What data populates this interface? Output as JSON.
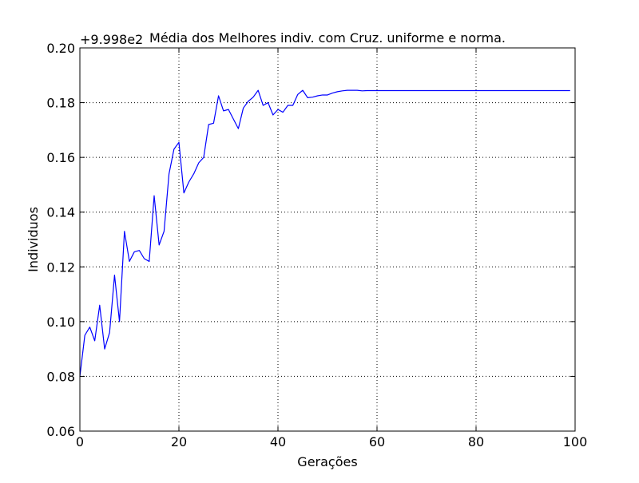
{
  "chart_data": {
    "type": "line",
    "title": "Média dos Melhores indiv. com Cruz. uniforme e norma.",
    "xlabel": "Gerações",
    "ylabel": "Individuos",
    "y_offset_label": "+9.998e2",
    "xlim": [
      0,
      100
    ],
    "ylim": [
      0.06,
      0.2
    ],
    "xticks": [
      0,
      20,
      40,
      60,
      80,
      100
    ],
    "yticks": [
      0.06,
      0.08,
      0.1,
      0.12,
      0.14,
      0.16,
      0.18,
      0.2
    ],
    "xtick_labels": [
      "0",
      "20",
      "40",
      "60",
      "80",
      "100"
    ],
    "ytick_labels": [
      "0.06",
      "0.08",
      "0.10",
      "0.12",
      "0.14",
      "0.16",
      "0.18",
      "0.20"
    ],
    "grid": true,
    "colors": {
      "series": "#0000ff",
      "grid": "#000000",
      "frame": "#000000"
    },
    "series": [
      {
        "x": [
          0,
          1,
          2,
          3,
          4,
          5,
          6,
          7,
          8,
          9,
          10,
          11,
          12,
          13,
          14,
          15,
          16,
          17,
          18,
          19,
          20,
          21,
          22,
          23,
          24,
          25,
          26,
          27,
          28,
          29,
          30,
          31,
          32,
          33,
          34,
          35,
          36,
          37,
          38,
          39,
          40,
          41,
          42,
          43,
          44,
          45,
          46,
          47,
          48,
          49,
          50,
          51,
          52,
          53,
          54,
          55,
          56,
          57,
          58,
          59,
          60,
          61,
          62,
          63,
          64,
          65,
          66,
          67,
          68,
          69,
          70,
          71,
          72,
          73,
          74,
          75,
          76,
          77,
          78,
          79,
          80,
          81,
          82,
          83,
          84,
          85,
          86,
          87,
          88,
          89,
          90,
          91,
          92,
          93,
          94,
          95,
          96,
          97,
          98,
          99
        ],
        "values": [
          0.08,
          0.095,
          0.098,
          0.093,
          0.106,
          0.09,
          0.096,
          0.117,
          0.1,
          0.133,
          0.122,
          0.1255,
          0.126,
          0.123,
          0.122,
          0.146,
          0.128,
          0.133,
          0.154,
          0.163,
          0.1655,
          0.147,
          0.151,
          0.154,
          0.158,
          0.16,
          0.172,
          0.1725,
          0.1825,
          0.177,
          0.1775,
          0.174,
          0.1705,
          0.178,
          0.1805,
          0.182,
          0.1845,
          0.179,
          0.18,
          0.1755,
          0.1775,
          0.1765,
          0.179,
          0.179,
          0.183,
          0.1845,
          0.1818,
          0.182,
          0.1825,
          0.1828,
          0.1828,
          0.1835,
          0.184,
          0.1843,
          0.1845,
          0.1845,
          0.1845,
          0.1843,
          0.1844,
          0.1844,
          0.1844,
          0.1844,
          0.1844,
          0.1844,
          0.1844,
          0.1844,
          0.1844,
          0.1844,
          0.1844,
          0.1844,
          0.1844,
          0.1844,
          0.1844,
          0.1844,
          0.1844,
          0.1844,
          0.1844,
          0.1844,
          0.1844,
          0.1844,
          0.1844,
          0.1844,
          0.1844,
          0.1844,
          0.1844,
          0.1844,
          0.1844,
          0.1844,
          0.1844,
          0.1844,
          0.1844,
          0.1844,
          0.1844,
          0.1844,
          0.1844,
          0.1844,
          0.1844,
          0.1844,
          0.1844,
          0.1844
        ]
      }
    ]
  }
}
